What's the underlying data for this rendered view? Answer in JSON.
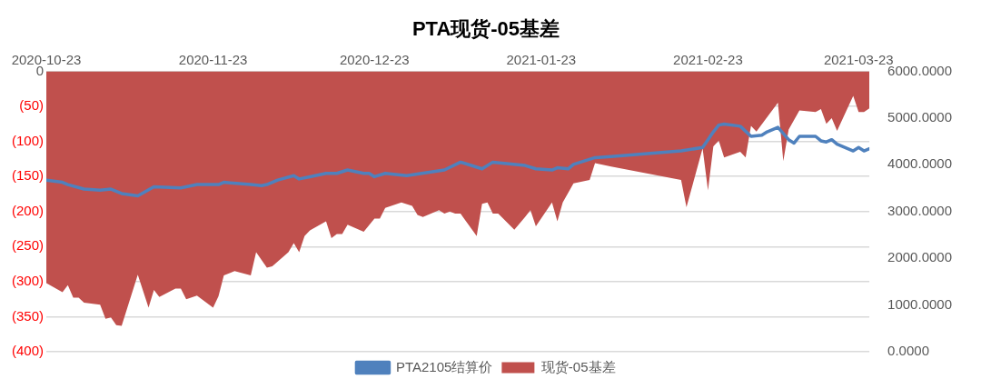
{
  "chart_data": {
    "type": "area",
    "title": "PTA现货-05基差",
    "xlim": [
      "2020-10-23",
      "2021-03-25"
    ],
    "xticks": [
      "2020-10-23",
      "2020-11-23",
      "2020-12-23",
      "2021-01-23",
      "2021-02-23",
      "2021-03-23"
    ],
    "ylim": [
      -400,
      0
    ],
    "yticks": [
      {
        "value": 0,
        "label": "0"
      },
      {
        "value": -50,
        "label": "(50)"
      },
      {
        "value": -100,
        "label": "(100)"
      },
      {
        "value": -150,
        "label": "(150)"
      },
      {
        "value": -200,
        "label": "(200)"
      },
      {
        "value": -250,
        "label": "(250)"
      },
      {
        "value": -300,
        "label": "(300)"
      },
      {
        "value": -350,
        "label": "(350)"
      },
      {
        "value": -400,
        "label": "(400)"
      }
    ],
    "y2lim": [
      0,
      6000
    ],
    "y2ticks": [
      {
        "value": 0,
        "label": "0.0000"
      },
      {
        "value": 1000,
        "label": "1000.0000"
      },
      {
        "value": 2000,
        "label": "2000.0000"
      },
      {
        "value": 3000,
        "label": "3000.0000"
      },
      {
        "value": 4000,
        "label": "4000.0000"
      },
      {
        "value": 5000,
        "label": "5000.0000"
      },
      {
        "value": 6000,
        "label": "6000.0000"
      }
    ],
    "grid": "y",
    "legend": "bottom",
    "series": [
      {
        "name": "现货-05基差",
        "type": "area",
        "color": "#c0504d",
        "x": [
          "2020-10-23",
          "2020-10-26",
          "2020-10-27",
          "2020-10-28",
          "2020-10-29",
          "2020-10-30",
          "2020-11-02",
          "2020-11-03",
          "2020-11-04",
          "2020-11-05",
          "2020-11-06",
          "2020-11-09",
          "2020-11-11",
          "2020-11-12",
          "2020-11-13",
          "2020-11-16",
          "2020-11-17",
          "2020-11-18",
          "2020-11-20",
          "2020-11-23",
          "2020-11-24",
          "2020-11-25",
          "2020-11-27",
          "2020-11-30",
          "2020-12-01",
          "2020-12-03",
          "2020-12-04",
          "2020-12-07",
          "2020-12-08",
          "2020-12-09",
          "2020-12-10",
          "2020-12-11",
          "2020-12-14",
          "2020-12-15",
          "2020-12-16",
          "2020-12-17",
          "2020-12-18",
          "2020-12-21",
          "2020-12-23",
          "2020-12-24",
          "2020-12-25",
          "2020-12-28",
          "2020-12-30",
          "2020-12-31",
          "2021-01-01",
          "2021-01-04",
          "2021-01-05",
          "2021-01-06",
          "2021-01-07",
          "2021-01-08",
          "2021-01-11",
          "2021-01-12",
          "2021-01-13",
          "2021-01-14",
          "2021-01-15",
          "2021-01-18",
          "2021-01-20",
          "2021-01-21",
          "2021-01-22",
          "2021-01-25",
          "2021-01-26",
          "2021-01-27",
          "2021-01-29",
          "2021-02-01",
          "2021-02-02",
          "2021-02-05",
          "2021-02-18",
          "2021-02-19",
          "2021-02-22",
          "2021-02-23",
          "2021-02-24",
          "2021-02-25",
          "2021-02-26",
          "2021-03-01",
          "2021-03-02",
          "2021-03-03",
          "2021-03-04",
          "2021-03-08",
          "2021-03-09",
          "2021-03-10",
          "2021-03-12",
          "2021-03-15",
          "2021-03-16",
          "2021-03-17",
          "2021-03-18",
          "2021-03-19",
          "2021-03-22",
          "2021-03-23",
          "2021-03-24",
          "2021-03-25"
        ],
        "values": [
          -302,
          -315,
          -305,
          -323,
          -323,
          -330,
          -333,
          -353,
          -351,
          -362,
          -363,
          -290,
          -337,
          -312,
          -322,
          -310,
          -310,
          -325,
          -320,
          -337,
          -321,
          -291,
          -285,
          -291,
          -258,
          -280,
          -278,
          -258,
          -245,
          -258,
          -235,
          -227,
          -214,
          -238,
          -232,
          -232,
          -219,
          -229,
          -210,
          -210,
          -195,
          -187,
          -192,
          -205,
          -208,
          -198,
          -203,
          -200,
          -203,
          -203,
          -235,
          -189,
          -187,
          -203,
          -203,
          -226,
          -208,
          -198,
          -221,
          -187,
          -214,
          -187,
          -160,
          -155,
          -131,
          -136,
          -155,
          -194,
          -110,
          -170,
          -107,
          -99,
          -123,
          -115,
          -123,
          -78,
          -86,
          -45,
          -128,
          -83,
          -56,
          -58,
          -54,
          -75,
          -67,
          -85,
          -35,
          -58,
          -58,
          -53
        ]
      },
      {
        "name": "PTA2105结算价",
        "type": "line",
        "axis": "y2",
        "color": "#4f81bd",
        "x": [
          "2020-10-23",
          "2020-10-26",
          "2020-10-27",
          "2020-10-30",
          "2020-11-02",
          "2020-11-04",
          "2020-11-06",
          "2020-11-09",
          "2020-11-12",
          "2020-11-17",
          "2020-11-20",
          "2020-11-24",
          "2020-11-25",
          "2020-11-30",
          "2020-12-02",
          "2020-12-03",
          "2020-12-05",
          "2020-12-08",
          "2020-12-09",
          "2020-12-11",
          "2020-12-14",
          "2020-12-16",
          "2020-12-18",
          "2020-12-21",
          "2020-12-22",
          "2020-12-23",
          "2020-12-25",
          "2020-12-29",
          "2021-01-05",
          "2021-01-08",
          "2021-01-12",
          "2021-01-14",
          "2021-01-20",
          "2021-01-22",
          "2021-01-25",
          "2021-01-26",
          "2021-01-28",
          "2021-01-29",
          "2021-02-02",
          "2021-02-05",
          "2021-02-18",
          "2021-02-22",
          "2021-02-23",
          "2021-02-24",
          "2021-02-25",
          "2021-02-26",
          "2021-03-01",
          "2021-03-03",
          "2021-03-05",
          "2021-03-06",
          "2021-03-08",
          "2021-03-10",
          "2021-03-11",
          "2021-03-12",
          "2021-03-15",
          "2021-03-16",
          "2021-03-17",
          "2021-03-18",
          "2021-03-19",
          "2021-03-22",
          "2021-03-23",
          "2021-03-24",
          "2021-03-25"
        ],
        "values": [
          3672,
          3624,
          3576,
          3480,
          3456,
          3480,
          3384,
          3336,
          3528,
          3504,
          3576,
          3576,
          3624,
          3576,
          3552,
          3576,
          3672,
          3768,
          3696,
          3744,
          3816,
          3816,
          3888,
          3816,
          3816,
          3744,
          3816,
          3768,
          3888,
          4056,
          3912,
          4056,
          3984,
          3912,
          3888,
          3936,
          3912,
          4008,
          4152,
          4176,
          4296,
          4368,
          4536,
          4704,
          4848,
          4872,
          4824,
          4608,
          4632,
          4704,
          4800,
          4536,
          4464,
          4608,
          4608,
          4512,
          4488,
          4536,
          4440,
          4296,
          4368,
          4296,
          4344
        ]
      }
    ]
  }
}
